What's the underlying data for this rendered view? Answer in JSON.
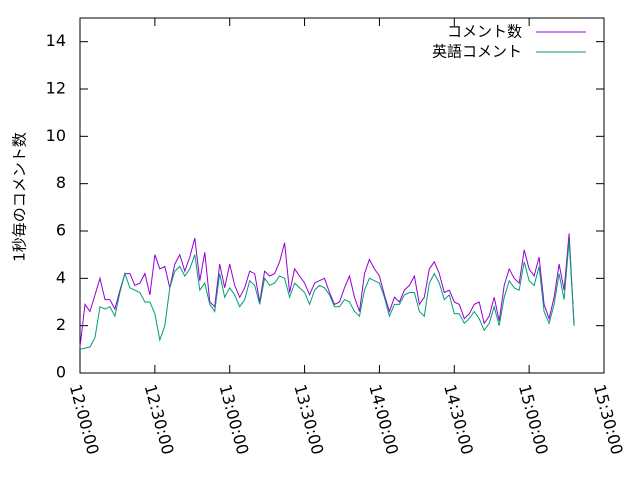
{
  "chart_data": {
    "type": "line",
    "title": "",
    "xlabel": "",
    "ylabel": "1秒毎のコメント数",
    "grid": false,
    "legend_position": "top-right",
    "xlim": [
      "12:00:00",
      "15:30:00"
    ],
    "ylim": [
      0,
      15
    ],
    "x_ticks": [
      "12:00:00",
      "12:30:00",
      "13:00:00",
      "13:30:00",
      "14:00:00",
      "14:30:00",
      "15:00:00",
      "15:30:00"
    ],
    "y_ticks": [
      "0",
      "2",
      "4",
      "6",
      "8",
      "10",
      "12",
      "14"
    ],
    "x": [
      "12:00",
      "12:02",
      "12:04",
      "12:06",
      "12:08",
      "12:10",
      "12:12",
      "12:14",
      "12:16",
      "12:18",
      "12:20",
      "12:22",
      "12:24",
      "12:26",
      "12:28",
      "12:30",
      "12:32",
      "12:34",
      "12:36",
      "12:38",
      "12:40",
      "12:42",
      "12:44",
      "12:46",
      "12:48",
      "12:50",
      "12:52",
      "12:54",
      "12:56",
      "12:58",
      "13:00",
      "13:02",
      "13:04",
      "13:06",
      "13:08",
      "13:10",
      "13:12",
      "13:14",
      "13:16",
      "13:18",
      "13:20",
      "13:22",
      "13:24",
      "13:26",
      "13:28",
      "13:30",
      "13:32",
      "13:34",
      "13:36",
      "13:38",
      "13:40",
      "13:42",
      "13:44",
      "13:46",
      "13:48",
      "13:50",
      "13:52",
      "13:54",
      "13:56",
      "13:58",
      "14:00",
      "14:02",
      "14:04",
      "14:06",
      "14:08",
      "14:10",
      "14:12",
      "14:14",
      "14:16",
      "14:18",
      "14:20",
      "14:22",
      "14:24",
      "14:26",
      "14:28",
      "14:30",
      "14:32",
      "14:34",
      "14:36",
      "14:38",
      "14:40",
      "14:42",
      "14:44",
      "14:46",
      "14:48",
      "14:50",
      "14:52",
      "14:54",
      "14:56",
      "14:58",
      "15:00",
      "15:02",
      "15:04",
      "15:06",
      "15:08",
      "15:10",
      "15:12",
      "15:14",
      "15:16",
      "15:18"
    ],
    "series": [
      {
        "name": "コメント数",
        "color": "#9400d3",
        "values": [
          1.1,
          2.9,
          2.6,
          3.3,
          4.0,
          3.1,
          3.1,
          2.7,
          3.5,
          4.2,
          4.2,
          3.7,
          3.8,
          4.2,
          3.3,
          5.0,
          4.4,
          4.5,
          3.6,
          4.6,
          5.0,
          4.3,
          4.9,
          5.7,
          3.9,
          5.1,
          3.0,
          2.8,
          4.6,
          3.6,
          4.6,
          3.7,
          3.2,
          3.6,
          4.3,
          4.2,
          3.0,
          4.3,
          4.1,
          4.2,
          4.7,
          5.5,
          3.4,
          4.4,
          4.1,
          3.8,
          3.3,
          3.8,
          3.9,
          4.0,
          3.4,
          2.9,
          3.0,
          3.6,
          4.1,
          3.2,
          2.6,
          4.2,
          4.8,
          4.4,
          4.1,
          3.3,
          2.6,
          3.2,
          3.0,
          3.5,
          3.7,
          4.1,
          2.9,
          3.2,
          4.4,
          4.7,
          4.2,
          3.4,
          3.5,
          3.0,
          2.9,
          2.3,
          2.5,
          2.9,
          3.0,
          2.1,
          2.4,
          3.2,
          2.2,
          3.7,
          4.4,
          4.0,
          3.8,
          5.2,
          4.4,
          4.1,
          4.9,
          2.9,
          2.3,
          3.2,
          4.6,
          3.5,
          5.9,
          2.0
        ]
      },
      {
        "name": "英語コメント",
        "color": "#009e73",
        "values": [
          1.0,
          1.05,
          1.1,
          1.5,
          2.8,
          2.7,
          2.8,
          2.4,
          3.4,
          4.2,
          3.6,
          3.5,
          3.4,
          3.0,
          3.0,
          2.5,
          1.4,
          2.0,
          3.6,
          4.3,
          4.5,
          4.1,
          4.4,
          5.0,
          3.5,
          3.8,
          2.9,
          2.6,
          4.2,
          3.2,
          3.6,
          3.3,
          2.8,
          3.1,
          3.9,
          3.7,
          2.9,
          4.0,
          3.7,
          3.8,
          4.1,
          4.0,
          3.2,
          3.8,
          3.6,
          3.4,
          2.9,
          3.5,
          3.7,
          3.6,
          3.3,
          2.8,
          2.8,
          3.1,
          3.0,
          2.6,
          2.4,
          3.5,
          4.0,
          3.9,
          3.8,
          3.2,
          2.4,
          2.9,
          2.9,
          3.3,
          3.4,
          3.4,
          2.6,
          2.4,
          3.8,
          4.2,
          3.8,
          3.1,
          3.3,
          2.5,
          2.5,
          2.1,
          2.3,
          2.6,
          2.3,
          1.8,
          2.1,
          2.8,
          2.0,
          3.2,
          3.9,
          3.6,
          3.5,
          4.7,
          3.9,
          3.7,
          4.5,
          2.6,
          2.1,
          2.9,
          4.2,
          3.1,
          5.6,
          2.0
        ]
      }
    ]
  }
}
